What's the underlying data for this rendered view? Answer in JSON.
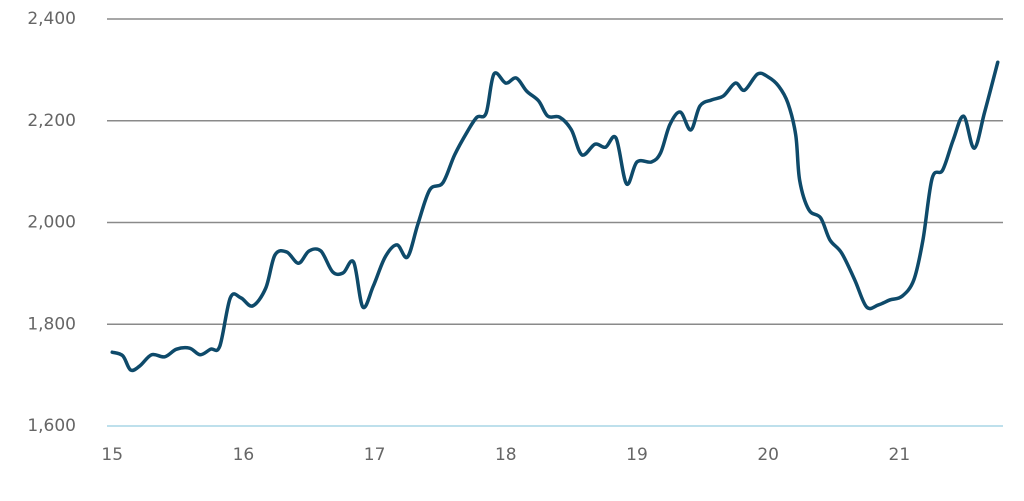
{
  "chart_data": {
    "type": "line",
    "x": [
      15.0,
      15.08,
      15.14,
      15.21,
      15.3,
      15.4,
      15.49,
      15.59,
      15.67,
      15.75,
      15.82,
      15.9,
      15.98,
      16.07,
      16.17,
      16.24,
      16.33,
      16.42,
      16.5,
      16.59,
      16.68,
      16.76,
      16.84,
      16.91,
      16.99,
      17.08,
      17.17,
      17.25,
      17.33,
      17.42,
      17.52,
      17.61,
      17.71,
      17.78,
      17.85,
      17.91,
      18.0,
      18.08,
      18.16,
      18.25,
      18.32,
      18.41,
      18.5,
      18.58,
      18.68,
      18.76,
      18.84,
      18.92,
      19.0,
      19.11,
      19.18,
      19.25,
      19.33,
      19.41,
      19.48,
      19.57,
      19.66,
      19.75,
      19.82,
      19.92,
      20.0,
      20.08,
      20.15,
      20.21,
      20.24,
      20.31,
      20.4,
      20.47,
      20.56,
      20.66,
      20.75,
      20.84,
      20.93,
      21.02,
      21.11,
      21.18,
      21.25,
      21.33,
      21.41,
      21.49,
      21.57,
      21.65,
      21.75
    ],
    "series": [
      {
        "color": "#0e4a6a",
        "values": [
          1745,
          1738,
          1710,
          1718,
          1740,
          1736,
          1751,
          1753,
          1740,
          1751,
          1757,
          1852,
          1852,
          1836,
          1871,
          1936,
          1942,
          1920,
          1944,
          1944,
          1903,
          1901,
          1922,
          1834,
          1875,
          1932,
          1956,
          1932,
          1997,
          2064,
          2078,
          2133,
          2180,
          2207,
          2215,
          2292,
          2274,
          2284,
          2258,
          2239,
          2209,
          2207,
          2182,
          2133,
          2154,
          2148,
          2166,
          2076,
          2119,
          2119,
          2137,
          2192,
          2217,
          2182,
          2229,
          2241,
          2249,
          2274,
          2260,
          2292,
          2286,
          2268,
          2235,
          2172,
          2083,
          2025,
          2009,
          1966,
          1940,
          1887,
          1834,
          1838,
          1848,
          1855,
          1887,
          1966,
          2087,
          2103,
          2162,
          2209,
          2146,
          2217,
          2315
        ]
      }
    ],
    "xlim": [
      14.96,
      21.79
    ],
    "xticks": [
      15,
      16,
      17,
      18,
      19,
      20,
      21
    ],
    "ylim": [
      1600,
      2400
    ],
    "yticks": [
      {
        "value": 1600,
        "label": "1,600"
      },
      {
        "value": 1800,
        "label": "1,800"
      },
      {
        "value": 2000,
        "label": "2,000"
      },
      {
        "value": 2200,
        "label": "2,200"
      },
      {
        "value": 2400,
        "label": "2,400"
      }
    ],
    "grid": true
  }
}
